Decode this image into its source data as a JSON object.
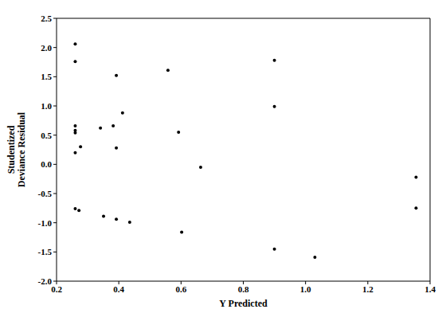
{
  "chart_data": {
    "type": "scatter",
    "xlabel": "Y Predicted",
    "ylabel": "Studentized\nDeviance Residual",
    "x": [
      0.26,
      0.26,
      0.26,
      0.26,
      0.26,
      0.26,
      0.277,
      0.26,
      0.272,
      0.392,
      0.341,
      0.382,
      0.412,
      0.392,
      0.351,
      0.392,
      0.435,
      0.558,
      0.592,
      0.602,
      0.663,
      0.9,
      0.9,
      0.9,
      1.03,
      1.355,
      1.355
    ],
    "values": [
      2.06,
      1.76,
      0.66,
      0.58,
      0.54,
      0.2,
      0.3,
      -0.76,
      -0.79,
      1.52,
      0.62,
      0.66,
      0.88,
      0.28,
      -0.89,
      -0.94,
      -0.99,
      1.61,
      0.55,
      -1.16,
      -0.05,
      1.78,
      0.99,
      -1.45,
      -1.59,
      -0.22,
      -0.75
    ],
    "color": "#000000",
    "marker": "circle",
    "grid": false,
    "xlim": [
      0.2,
      1.4
    ],
    "xticks": [
      0.2,
      0.4,
      0.6,
      0.8,
      {
        "value": 1,
        "label": "1.0"
      },
      1.2,
      1.4
    ],
    "ylim": [
      -2,
      2.5
    ],
    "yticks": [
      {
        "value": -2,
        "label": "-2.0"
      },
      -1.5,
      {
        "value": -1,
        "label": "-1.0"
      },
      -0.5,
      {
        "value": 0,
        "label": "0.0"
      },
      0.5,
      {
        "value": 1,
        "label": "1.0"
      },
      1.5,
      {
        "value": 2,
        "label": "2.0"
      },
      2.5
    ]
  }
}
